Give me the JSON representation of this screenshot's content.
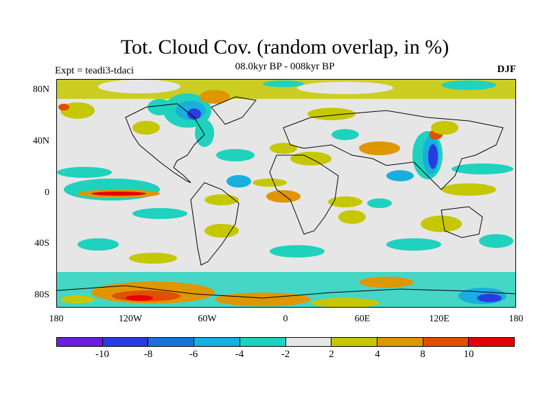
{
  "title": "Tot. Cloud Cov. (random overlap, in %)",
  "subtitle": "08.0kyr BP - 008kyr BP",
  "experiment": "Expt = teadi3-tdaci",
  "season": "DJF",
  "map": {
    "lat_labels": [
      "80N",
      "40N",
      "0",
      "40S",
      "80S"
    ],
    "lon_labels": [
      "180",
      "120W",
      "60W",
      "0",
      "60E",
      "120E",
      "180"
    ]
  },
  "colorbar": {
    "colors": [
      "#6f1edc",
      "#2a3be0",
      "#1a72d8",
      "#18aede",
      "#1ed2be",
      "#e6e6e6",
      "#c5c800",
      "#e09600",
      "#e05000",
      "#e60000"
    ],
    "labels": [
      "-10",
      "-8",
      "-6",
      "-4",
      "-2",
      "2",
      "4",
      "8",
      "10"
    ]
  }
}
